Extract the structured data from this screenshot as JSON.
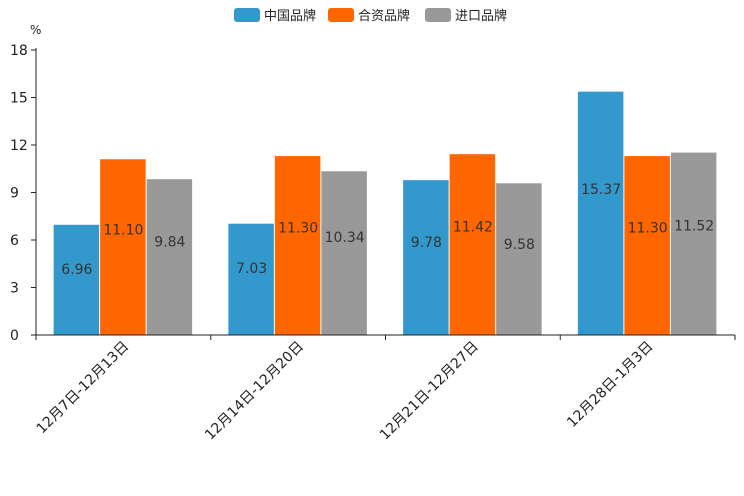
{
  "chart_data": {
    "type": "bar",
    "title": "",
    "unit": "%",
    "xlabel": "",
    "ylabel": "%",
    "ylim": [
      0,
      18
    ],
    "yticks": [
      0,
      3,
      6,
      9,
      12,
      15,
      18
    ],
    "grid": false,
    "legend_position": "top-center",
    "categories": [
      "12月7日-12月13日",
      "12月14日-12月20日",
      "12月21日-12月27日",
      "12月28日-1月3日"
    ],
    "series": [
      {
        "name": "中国品牌",
        "color": "#3399cc",
        "values": [
          6.96,
          7.03,
          9.78,
          15.37
        ],
        "labels": [
          "6.96",
          "7.03",
          "9.78",
          "15.37"
        ]
      },
      {
        "name": "合资品牌",
        "color": "#ff6600",
        "values": [
          11.1,
          11.3,
          11.42,
          11.3
        ],
        "labels": [
          "11.10",
          "11.30",
          "11.42",
          "11.30"
        ]
      },
      {
        "name": "进口品牌",
        "color": "#999999",
        "values": [
          9.84,
          10.34,
          9.58,
          11.52
        ],
        "labels": [
          "9.84",
          "10.34",
          "9.58",
          "11.52"
        ]
      }
    ]
  }
}
